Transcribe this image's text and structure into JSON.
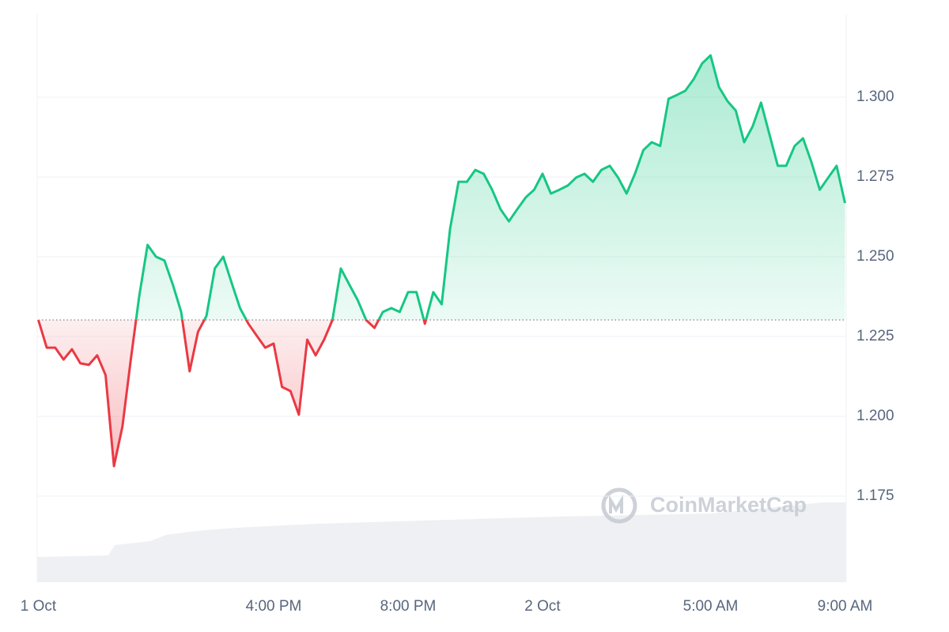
{
  "chart_data": {
    "type": "area",
    "watermark": "CoinMarketCap",
    "x": [
      9,
      9.25,
      9.5,
      9.75,
      10,
      10.25,
      10.5,
      10.75,
      11,
      11.25,
      11.5,
      11.75,
      12,
      12.25,
      12.5,
      12.75,
      13,
      13.25,
      13.5,
      13.75,
      14,
      14.25,
      14.5,
      14.75,
      15,
      15.25,
      15.5,
      15.75,
      16,
      16.25,
      16.5,
      16.75,
      17,
      17.25,
      17.5,
      17.75,
      18,
      18.25,
      18.5,
      18.75,
      19,
      19.25,
      19.5,
      19.75,
      20,
      20.25,
      20.5,
      20.75,
      21,
      21.25,
      21.5,
      21.75,
      22,
      22.25,
      22.5,
      22.75,
      23,
      23.25,
      23.5,
      23.75,
      24,
      24.25,
      24.5,
      24.75,
      25,
      25.25,
      25.5,
      25.75,
      26,
      26.25,
      26.5,
      26.75,
      27,
      27.25,
      27.5,
      27.75,
      28,
      28.25,
      28.5,
      28.75,
      29,
      29.25,
      29.5,
      29.75,
      30,
      30.25,
      30.5,
      30.75,
      31,
      31.25,
      31.5,
      31.75,
      32,
      32.25,
      32.5,
      32.75,
      33
    ],
    "values": [
      1.2302,
      1.2215,
      1.2215,
      1.2178,
      1.221,
      1.2166,
      1.2161,
      1.2191,
      1.2129,
      1.1844,
      1.1968,
      1.2178,
      1.2376,
      1.2537,
      1.25,
      1.2488,
      1.2413,
      1.2327,
      1.2141,
      1.2265,
      1.2314,
      1.2463,
      1.25,
      1.2418,
      1.2339,
      1.229,
      1.2252,
      1.2215,
      1.2228,
      1.2092,
      1.2079,
      1.2005,
      1.224,
      1.2191,
      1.224,
      1.2302,
      1.2463,
      1.2413,
      1.2364,
      1.2302,
      1.2277,
      1.2327,
      1.2339,
      1.2327,
      1.2389,
      1.2389,
      1.229,
      1.2389,
      1.2351,
      1.2587,
      1.2735,
      1.2735,
      1.2772,
      1.276,
      1.271,
      1.2649,
      1.2611,
      1.2649,
      1.2686,
      1.271,
      1.276,
      1.2698,
      1.271,
      1.2723,
      1.2748,
      1.276,
      1.2735,
      1.2772,
      1.2785,
      1.2748,
      1.2698,
      1.276,
      1.2834,
      1.2859,
      1.2847,
      1.2995,
      1.3007,
      1.302,
      1.3057,
      1.3106,
      1.3131,
      1.3032,
      1.2988,
      1.2958,
      1.2859,
      1.2908,
      1.2983,
      1.2884,
      1.2785,
      1.2785,
      1.2847,
      1.2871,
      1.2797,
      1.271,
      1.2748,
      1.2785,
      1.2668
    ],
    "baseline": 1.2302,
    "colors": {
      "up": "#16c784",
      "down": "#ea3943"
    },
    "xlim": [
      9,
      33
    ],
    "xticks": [
      {
        "value": 9,
        "label": "1 Oct"
      },
      {
        "value": 16,
        "label": "4:00 PM"
      },
      {
        "value": 20,
        "label": "8:00 PM"
      },
      {
        "value": 24,
        "label": "2 Oct"
      },
      {
        "value": 29,
        "label": "5:00 AM"
      },
      {
        "value": 33,
        "label": "9:00 AM"
      }
    ],
    "ylim": [
      1.148,
      1.326
    ],
    "yticks": [
      1.175,
      {
        "value": 1.2,
        "label": "1.200"
      },
      1.225,
      {
        "value": 1.25,
        "label": "1.250"
      },
      1.275,
      {
        "value": 1.3,
        "label": "1.300"
      }
    ],
    "grid": true
  }
}
